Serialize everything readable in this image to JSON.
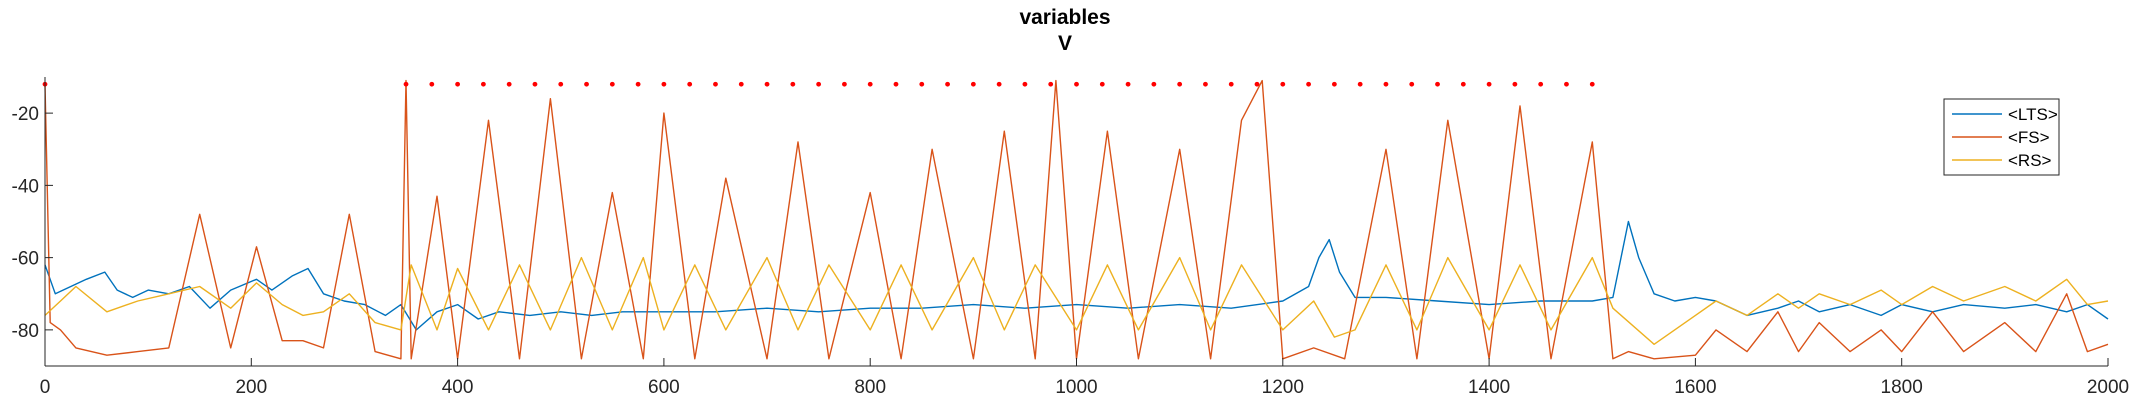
{
  "chart_data": {
    "type": "line",
    "title": "variables",
    "subtitle": "V",
    "xlabel": "",
    "ylabel": "",
    "xlim": [
      0,
      2000
    ],
    "ylim": [
      -90,
      -10
    ],
    "x_ticks": [
      0,
      200,
      400,
      600,
      800,
      1000,
      1200,
      1400,
      1600,
      1800,
      2000
    ],
    "x_tick_labels": [
      "0",
      "200",
      "400",
      "600",
      "800",
      "1000",
      "1200",
      "1400",
      "1600",
      "1800",
      "2000"
    ],
    "y_ticks": [
      -20,
      -40,
      -60,
      -80
    ],
    "y_tick_labels": [
      "-20",
      "-40",
      "-60",
      "-80"
    ],
    "grid": false,
    "legend_position": "top-right",
    "series": [
      {
        "name": "<LTS>",
        "color": "#0072BD",
        "x": [
          0,
          10,
          25,
          40,
          58,
          70,
          85,
          100,
          120,
          140,
          160,
          180,
          205,
          220,
          240,
          255,
          270,
          290,
          310,
          330,
          345,
          360,
          380,
          400,
          420,
          440,
          470,
          500,
          530,
          560,
          600,
          650,
          700,
          750,
          800,
          850,
          900,
          950,
          1000,
          1050,
          1100,
          1150,
          1200,
          1225,
          1235,
          1245,
          1255,
          1270,
          1300,
          1350,
          1400,
          1450,
          1500,
          1520,
          1535,
          1545,
          1560,
          1580,
          1600,
          1620,
          1650,
          1680,
          1700,
          1720,
          1750,
          1780,
          1800,
          1830,
          1860,
          1900,
          1930,
          1960,
          1980,
          2000
        ],
        "y": [
          -62,
          -70,
          -68,
          -66,
          -64,
          -69,
          -71,
          -69,
          -70,
          -68,
          -74,
          -69,
          -66,
          -69,
          -65,
          -63,
          -70,
          -72,
          -73,
          -76,
          -73,
          -80,
          -75,
          -73,
          -77,
          -75,
          -76,
          -75,
          -76,
          -75,
          -75,
          -75,
          -74,
          -75,
          -74,
          -74,
          -73,
          -74,
          -73,
          -74,
          -73,
          -74,
          -72,
          -68,
          -60,
          -55,
          -64,
          -71,
          -71,
          -72,
          -73,
          -72,
          -72,
          -71,
          -50,
          -60,
          -70,
          -72,
          -71,
          -72,
          -76,
          -74,
          -72,
          -75,
          -73,
          -76,
          -73,
          -75,
          -73,
          -74,
          -73,
          -75,
          -73,
          -77
        ]
      },
      {
        "name": "<FS>",
        "color": "#D95319",
        "x": [
          0,
          5,
          15,
          30,
          60,
          90,
          120,
          150,
          180,
          205,
          230,
          250,
          270,
          295,
          320,
          345,
          350,
          355,
          380,
          400,
          430,
          460,
          490,
          520,
          550,
          580,
          600,
          630,
          660,
          700,
          730,
          760,
          800,
          830,
          860,
          900,
          930,
          960,
          980,
          1000,
          1030,
          1060,
          1100,
          1130,
          1160,
          1180,
          1200,
          1230,
          1260,
          1300,
          1330,
          1360,
          1400,
          1430,
          1460,
          1500,
          1520,
          1535,
          1560,
          1600,
          1620,
          1650,
          1680,
          1700,
          1720,
          1750,
          1780,
          1800,
          1830,
          1860,
          1900,
          1930,
          1960,
          1980,
          2000
        ],
        "y": [
          -12,
          -78,
          -80,
          -85,
          -87,
          -86,
          -85,
          -48,
          -85,
          -57,
          -83,
          -83,
          -85,
          -48,
          -86,
          -88,
          -11,
          -88,
          -43,
          -88,
          -22,
          -88,
          -16,
          -88,
          -42,
          -88,
          -20,
          -88,
          -38,
          -88,
          -28,
          -88,
          -42,
          -88,
          -30,
          -88,
          -25,
          -88,
          -11,
          -88,
          -25,
          -88,
          -30,
          -88,
          -22,
          -11,
          -88,
          -85,
          -88,
          -30,
          -88,
          -22,
          -88,
          -18,
          -88,
          -28,
          -88,
          -86,
          -88,
          -87,
          -80,
          -86,
          -75,
          -86,
          -78,
          -86,
          -80,
          -86,
          -75,
          -86,
          -78,
          -86,
          -70,
          -86,
          -84
        ]
      },
      {
        "name": "<RS>",
        "color": "#EDB120",
        "x": [
          0,
          15,
          30,
          60,
          90,
          120,
          150,
          180,
          205,
          230,
          250,
          270,
          295,
          320,
          345,
          355,
          380,
          400,
          430,
          460,
          490,
          520,
          550,
          580,
          600,
          630,
          660,
          700,
          730,
          760,
          800,
          830,
          860,
          900,
          930,
          960,
          1000,
          1030,
          1060,
          1100,
          1130,
          1160,
          1200,
          1230,
          1250,
          1270,
          1300,
          1330,
          1360,
          1400,
          1430,
          1460,
          1500,
          1520,
          1560,
          1600,
          1620,
          1650,
          1680,
          1700,
          1720,
          1750,
          1780,
          1800,
          1830,
          1860,
          1900,
          1930,
          1960,
          1980,
          2000
        ],
        "y": [
          -76,
          -72,
          -68,
          -75,
          -72,
          -70,
          -68,
          -74,
          -67,
          -73,
          -76,
          -75,
          -70,
          -78,
          -80,
          -62,
          -80,
          -63,
          -80,
          -62,
          -80,
          -60,
          -80,
          -60,
          -80,
          -62,
          -80,
          -60,
          -80,
          -62,
          -80,
          -62,
          -80,
          -60,
          -80,
          -62,
          -80,
          -62,
          -80,
          -60,
          -80,
          -62,
          -80,
          -72,
          -82,
          -80,
          -62,
          -80,
          -60,
          -80,
          -62,
          -80,
          -60,
          -74,
          -84,
          -76,
          -72,
          -76,
          -70,
          -74,
          -70,
          -73,
          -69,
          -73,
          -68,
          -72,
          -68,
          -72,
          -66,
          -73,
          -72
        ]
      }
    ],
    "markers": {
      "name": "",
      "color": "#FF0000",
      "y": -12,
      "x": [
        0,
        350,
        375,
        400,
        425,
        450,
        475,
        500,
        525,
        550,
        575,
        600,
        625,
        650,
        675,
        700,
        725,
        750,
        775,
        800,
        825,
        850,
        875,
        900,
        925,
        950,
        975,
        1000,
        1025,
        1050,
        1075,
        1100,
        1125,
        1150,
        1175,
        1200,
        1225,
        1250,
        1275,
        1300,
        1325,
        1350,
        1375,
        1400,
        1425,
        1450,
        1475,
        1500
      ]
    }
  }
}
